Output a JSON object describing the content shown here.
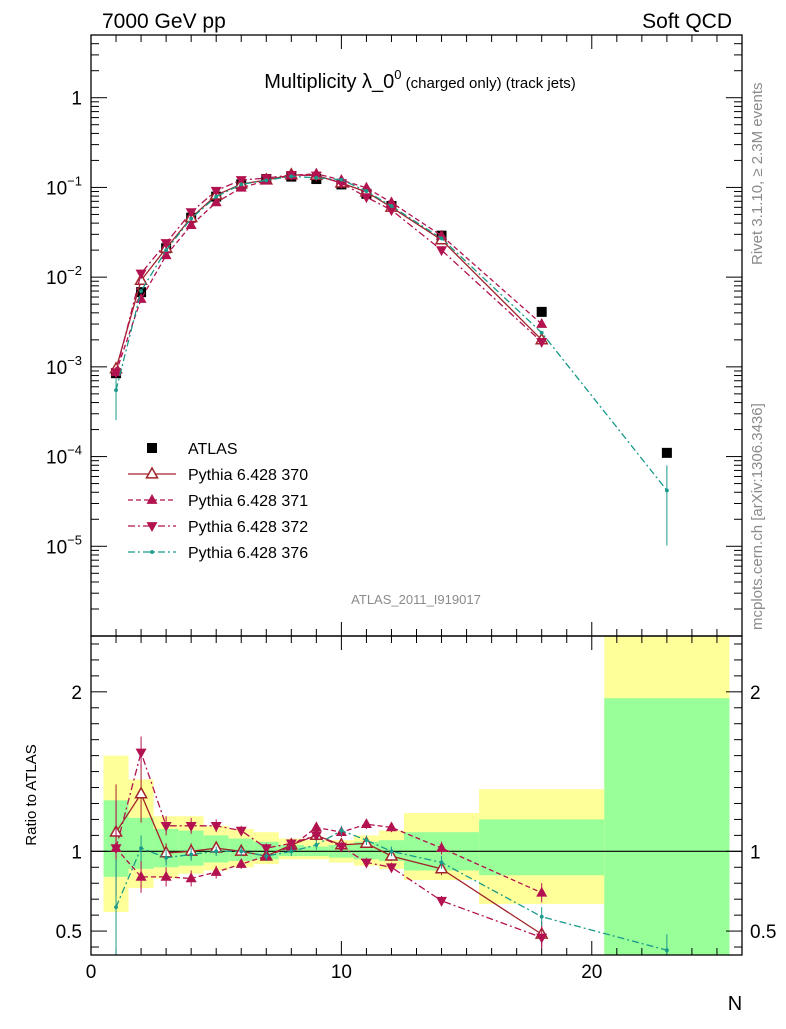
{
  "header": {
    "left": "7000 GeV pp",
    "right": "Soft QCD"
  },
  "side_labels": {
    "rivet": "Rivet 3.1.10, ≥ 2.3M events",
    "mcplots": "mcplots.cern.ch [arXiv:1306.3436]"
  },
  "analysis_id": "ATLAS_2011_I919017",
  "chart_data": [
    {
      "type": "scatter",
      "panel": "main",
      "title_main": "Multiplicity λ_0",
      "title_sup": "0",
      "title_small": " (charged only) (track jets)",
      "xlabel": "N",
      "ylabel": "",
      "xlim": [
        0,
        26
      ],
      "ylim": [
        1e-06,
        5
      ],
      "yscale": "log",
      "x_ticks": [
        0,
        10,
        20
      ],
      "y_ticks": [
        {
          "value": 1,
          "label": "1",
          "sup": ""
        },
        {
          "value": 0.1,
          "label": "10",
          "sup": "−1"
        },
        {
          "value": 0.01,
          "label": "10",
          "sup": "−2"
        },
        {
          "value": 0.001,
          "label": "10",
          "sup": "−3"
        },
        {
          "value": 0.0001,
          "label": "10",
          "sup": "−4"
        },
        {
          "value": 1e-05,
          "label": "10",
          "sup": "−5"
        }
      ],
      "legend_position": "lower-left",
      "series": [
        {
          "name": "ATLAS",
          "style": "data",
          "color": "#000000",
          "x": [
            1,
            2,
            3,
            4,
            5,
            6,
            7,
            8,
            9,
            10,
            11,
            12,
            14,
            18,
            23
          ],
          "y": [
            0.00085,
            0.0068,
            0.021,
            0.046,
            0.079,
            0.108,
            0.124,
            0.132,
            0.124,
            0.108,
            0.085,
            0.062,
            0.029,
            0.0041,
            0.00011
          ]
        },
        {
          "name": "Pythia 6.428 370",
          "style": "solid-open-triangle-up",
          "color": "#a0242a",
          "x": [
            1,
            2,
            3,
            4,
            5,
            6,
            7,
            8,
            9,
            10,
            11,
            12,
            14,
            18
          ],
          "y": [
            0.00095,
            0.0092,
            0.021,
            0.046,
            0.082,
            0.109,
            0.121,
            0.138,
            0.136,
            0.112,
            0.089,
            0.06,
            0.026,
            0.002
          ]
        },
        {
          "name": "Pythia 6.428 371",
          "style": "dashed-filled-triangle-up",
          "color": "#b2124f",
          "x": [
            1,
            2,
            3,
            4,
            5,
            6,
            7,
            8,
            9,
            10,
            11,
            12,
            14,
            18
          ],
          "y": [
            0.00087,
            0.0057,
            0.0175,
            0.038,
            0.068,
            0.099,
            0.119,
            0.136,
            0.142,
            0.121,
            0.099,
            0.068,
            0.029,
            0.003
          ]
        },
        {
          "name": "Pythia 6.428 372",
          "style": "dashdot-filled-triangle-down",
          "color": "#b2124f",
          "x": [
            1,
            2,
            3,
            4,
            5,
            6,
            7,
            8,
            9,
            10,
            11,
            12,
            14,
            18
          ],
          "y": [
            0.00087,
            0.011,
            0.024,
            0.053,
            0.092,
            0.121,
            0.127,
            0.138,
            0.136,
            0.112,
            0.078,
            0.056,
            0.02,
            0.0019
          ]
        },
        {
          "name": "Pythia 6.428 376",
          "style": "dashdot-teal",
          "color": "#1a9a8a",
          "x": [
            1,
            2,
            3,
            4,
            5,
            6,
            7,
            8,
            9,
            10,
            11,
            12,
            14,
            18,
            23
          ],
          "y": [
            0.00055,
            0.007,
            0.02,
            0.045,
            0.079,
            0.108,
            0.12,
            0.133,
            0.128,
            0.122,
            0.091,
            0.062,
            0.027,
            0.0024,
            4.2e-05
          ]
        }
      ]
    },
    {
      "type": "scatter",
      "panel": "ratio",
      "ylabel": "Ratio to ATLAS",
      "xlabel": "N",
      "xlim": [
        0,
        26
      ],
      "ylim": [
        0.35,
        2.35
      ],
      "x_ticks": [
        0,
        10,
        20
      ],
      "y_ticks": [
        {
          "value": 0.5,
          "label": "0.5"
        },
        {
          "value": 1,
          "label": "1"
        },
        {
          "value": 2,
          "label": "2"
        }
      ],
      "uncertainty_bands": [
        {
          "x0": 0.5,
          "x1": 1.5,
          "yellow": [
            0.62,
            1.6
          ],
          "green": [
            0.84,
            1.32
          ]
        },
        {
          "x0": 1.5,
          "x1": 2.5,
          "yellow": [
            0.77,
            1.45
          ],
          "green": [
            0.89,
            1.21
          ]
        },
        {
          "x0": 2.5,
          "x1": 3.5,
          "yellow": [
            0.83,
            1.22
          ],
          "green": [
            0.9,
            1.14
          ]
        },
        {
          "x0": 3.5,
          "x1": 4.5,
          "yellow": [
            0.86,
            1.22
          ],
          "green": [
            0.91,
            1.13
          ]
        },
        {
          "x0": 4.5,
          "x1": 5.5,
          "yellow": [
            0.88,
            1.16
          ],
          "green": [
            0.93,
            1.1
          ]
        },
        {
          "x0": 5.5,
          "x1": 6.5,
          "yellow": [
            0.9,
            1.14
          ],
          "green": [
            0.94,
            1.08
          ]
        },
        {
          "x0": 6.5,
          "x1": 7.5,
          "yellow": [
            0.92,
            1.12
          ],
          "green": [
            0.95,
            1.06
          ]
        },
        {
          "x0": 7.5,
          "x1": 8.5,
          "yellow": [
            0.95,
            1.08
          ],
          "green": [
            0.97,
            1.04
          ]
        },
        {
          "x0": 8.5,
          "x1": 9.5,
          "yellow": [
            0.95,
            1.07
          ],
          "green": [
            0.97,
            1.03
          ]
        },
        {
          "x0": 9.5,
          "x1": 10.5,
          "yellow": [
            0.93,
            1.07
          ],
          "green": [
            0.96,
            1.04
          ]
        },
        {
          "x0": 10.5,
          "x1": 11.5,
          "yellow": [
            0.91,
            1.1
          ],
          "green": [
            0.95,
            1.06
          ]
        },
        {
          "x0": 11.5,
          "x1": 12.5,
          "yellow": [
            0.89,
            1.13
          ],
          "green": [
            0.94,
            1.07
          ]
        },
        {
          "x0": 12.5,
          "x1": 15.5,
          "yellow": [
            0.82,
            1.24
          ],
          "green": [
            0.88,
            1.12
          ]
        },
        {
          "x0": 15.5,
          "x1": 20.5,
          "yellow": [
            0.67,
            1.39
          ],
          "green": [
            0.85,
            1.2
          ]
        },
        {
          "x0": 20.5,
          "x1": 25.5,
          "yellow": [
            0.35,
            2.35
          ],
          "green": [
            0.35,
            1.96
          ]
        }
      ],
      "reference_line": 1,
      "series": [
        {
          "name": "Pythia 6.428 370",
          "color": "#a0242a",
          "x": [
            1,
            2,
            3,
            4,
            5,
            6,
            7,
            8,
            9,
            10,
            11,
            12,
            14,
            18
          ],
          "y": [
            1.12,
            1.36,
            0.99,
            1.0,
            1.02,
            1.0,
            0.97,
            1.04,
            1.1,
            1.04,
            1.05,
            0.97,
            0.89,
            0.48
          ],
          "err": [
            0.3,
            0.18,
            0.06,
            0.05,
            0.04,
            0.03,
            0.03,
            0.03,
            0.03,
            0.03,
            0.03,
            0.03,
            0.04,
            0.08
          ]
        },
        {
          "name": "Pythia 6.428 371",
          "color": "#b2124f",
          "x": [
            1,
            2,
            3,
            4,
            5,
            6,
            7,
            8,
            9,
            10,
            11,
            12,
            14,
            18
          ],
          "y": [
            1.02,
            0.84,
            0.84,
            0.83,
            0.87,
            0.92,
            0.97,
            1.03,
            1.15,
            1.12,
            1.17,
            1.15,
            1.02,
            0.74
          ],
          "err": [
            0.3,
            0.1,
            0.06,
            0.05,
            0.04,
            0.03,
            0.03,
            0.03,
            0.03,
            0.03,
            0.03,
            0.03,
            0.04,
            0.06
          ]
        },
        {
          "name": "Pythia 6.428 372",
          "color": "#b2124f",
          "x": [
            1,
            2,
            3,
            4,
            5,
            6,
            7,
            8,
            9,
            10,
            11,
            12,
            14,
            18
          ],
          "y": [
            1.02,
            1.62,
            1.16,
            1.16,
            1.16,
            1.13,
            1.02,
            1.05,
            1.1,
            1.03,
            0.93,
            0.9,
            0.69,
            0.46
          ],
          "err": [
            0.3,
            0.1,
            0.06,
            0.05,
            0.04,
            0.03,
            0.03,
            0.03,
            0.03,
            0.03,
            0.03,
            0.03,
            0.03,
            0.07
          ]
        },
        {
          "name": "Pythia 6.428 376",
          "color": "#1a9a8a",
          "x": [
            1,
            2,
            3,
            4,
            5,
            6,
            7,
            8,
            9,
            10,
            11,
            12,
            14,
            18,
            23
          ],
          "y": [
            0.65,
            1.02,
            0.96,
            0.98,
            1.0,
            1.0,
            0.97,
            1.0,
            1.04,
            1.13,
            1.07,
            1.0,
            0.93,
            0.59,
            0.38
          ],
          "err": [
            0.3,
            0.08,
            0.05,
            0.04,
            0.03,
            0.03,
            0.03,
            0.03,
            0.03,
            0.03,
            0.03,
            0.03,
            0.04,
            0.06,
            0.1
          ]
        }
      ]
    }
  ]
}
